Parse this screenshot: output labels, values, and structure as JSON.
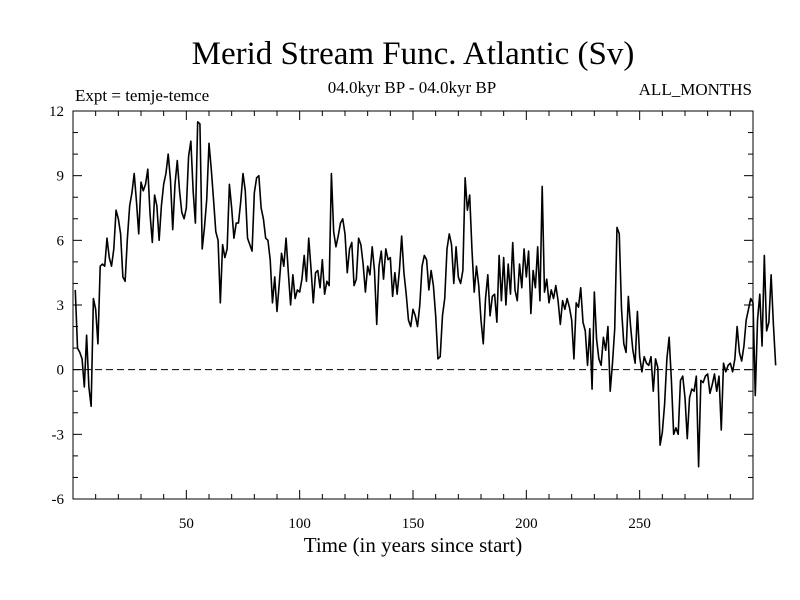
{
  "chart_data": {
    "type": "line",
    "title": "Merid Stream Func. Atlantic (Sv)",
    "subtitle_left": "Expt = temje-temce",
    "subtitle_center": "04.0kyr BP - 04.0kyr BP",
    "subtitle_right": "ALL_MONTHS",
    "xlabel": "Time (in years since start)",
    "ylabel": "",
    "xlim": [
      0,
      300
    ],
    "ylim": [
      -6,
      12
    ],
    "x_ticks": [
      50,
      100,
      150,
      200,
      250
    ],
    "x_tick_labels": [
      "50",
      "100",
      "150",
      "200",
      "250"
    ],
    "y_ticks": [
      -6,
      -3,
      0,
      3,
      6,
      9,
      12
    ],
    "y_tick_labels": [
      "-6",
      "-3",
      "0",
      "3",
      "6",
      "9",
      "12"
    ],
    "reference_line": {
      "y": 0,
      "style": "dashed"
    },
    "series": [
      {
        "name": "Merid Stream Func. Atlantic",
        "x_start": 1,
        "x_step": 1,
        "values": [
          3.7,
          1.0,
          0.8,
          0.5,
          -0.8,
          1.6,
          -0.8,
          -1.7,
          3.3,
          2.8,
          1.2,
          4.8,
          4.9,
          4.8,
          6.1,
          5.2,
          4.8,
          5.6,
          7.4,
          7.0,
          6.3,
          4.3,
          4.1,
          6.1,
          7.6,
          8.2,
          9.1,
          7.8,
          6.3,
          8.7,
          8.3,
          8.6,
          9.3,
          7.2,
          5.9,
          8.1,
          7.6,
          6.0,
          7.6,
          8.6,
          9.1,
          10.0,
          8.8,
          6.5,
          8.6,
          9.7,
          8.3,
          7.3,
          7.0,
          7.5,
          9.9,
          10.6,
          8.3,
          6.8,
          11.5,
          11.4,
          5.6,
          6.6,
          7.9,
          10.5,
          9.3,
          7.9,
          6.4,
          6.0,
          3.1,
          5.8,
          5.2,
          5.6,
          8.6,
          7.5,
          6.1,
          6.8,
          6.8,
          7.8,
          9.1,
          8.3,
          6.1,
          5.8,
          5.5,
          8.2,
          8.9,
          9.0,
          7.5,
          7.0,
          6.1,
          6.0,
          5.1,
          3.1,
          4.3,
          2.7,
          4.0,
          5.4,
          4.8,
          6.1,
          4.5,
          3.0,
          4.4,
          3.3,
          3.7,
          3.6,
          4.2,
          5.3,
          4.1,
          6.1,
          4.7,
          3.1,
          4.5,
          4.6,
          3.8,
          5.1,
          3.5,
          4.1,
          3.9,
          9.1,
          6.4,
          5.7,
          6.2,
          6.8,
          7.0,
          6.3,
          4.5,
          5.6,
          5.9,
          3.9,
          4.2,
          6.1,
          5.8,
          4.9,
          3.6,
          4.8,
          4.4,
          5.7,
          4.6,
          2.1,
          4.8,
          5.5,
          4.2,
          5.6,
          5.1,
          5.2,
          3.4,
          4.5,
          3.5,
          4.6,
          6.2,
          4.5,
          3.5,
          2.3,
          2.0,
          2.8,
          2.5,
          2.0,
          3.0,
          4.8,
          5.3,
          5.1,
          3.7,
          4.6,
          3.9,
          2.5,
          0.5,
          0.6,
          2.5,
          3.3,
          5.6,
          6.3,
          5.8,
          4.0,
          5.7,
          4.3,
          4.0,
          4.6,
          8.9,
          7.4,
          8.1,
          5.6,
          3.6,
          4.8,
          3.9,
          2.3,
          1.2,
          3.3,
          4.4,
          2.5,
          3.4,
          3.5,
          2.2,
          5.3,
          3.2,
          5.2,
          3.0,
          4.9,
          3.5,
          5.9,
          3.7,
          3.2,
          4.9,
          3.8,
          5.6,
          4.3,
          5.5,
          2.6,
          4.6,
          3.8,
          5.7,
          3.2,
          8.5,
          3.6,
          4.2,
          3.1,
          3.7,
          3.3,
          3.9,
          3.2,
          2.1,
          3.2,
          2.8,
          3.3,
          2.9,
          2.3,
          0.5,
          3.1,
          2.9,
          3.8,
          2.2,
          1.8,
          0.2,
          1.9,
          -0.9,
          3.6,
          1.4,
          0.5,
          0.2,
          1.5,
          0.9,
          2.0,
          -1.0,
          0.3,
          1.9,
          6.6,
          6.3,
          2.8,
          1.2,
          0.8,
          3.4,
          2.0,
          0.9,
          0.3,
          2.7,
          0.6,
          -0.1,
          0.6,
          0.3,
          0.2,
          0.6,
          -1.0,
          0.5,
          0.1,
          -3.5,
          -2.9,
          -1.6,
          0.5,
          1.5,
          -0.5,
          -3.0,
          -2.7,
          -3.0,
          -0.5,
          -0.3,
          -1.3,
          -3.2,
          -1.3,
          -0.9,
          -1.0,
          -0.3,
          -4.5,
          -0.5,
          -0.6,
          -0.3,
          -0.2,
          -1.1,
          -0.7,
          -0.2,
          -1.0,
          -0.3,
          -2.8,
          0.3,
          -0.1,
          0.2,
          0.3,
          -0.1,
          0.5,
          2.0,
          0.8,
          0.4,
          1.1,
          2.3,
          2.8,
          3.3,
          3.1,
          -1.2,
          2.3,
          3.5,
          1.1,
          5.3,
          1.8,
          2.2,
          4.4,
          2.1,
          0.2
        ]
      }
    ]
  }
}
